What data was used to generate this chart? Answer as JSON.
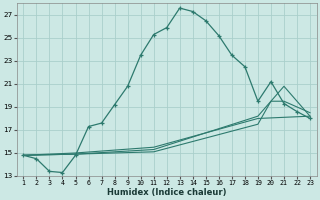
{
  "xlabel": "Humidex (Indice chaleur)",
  "bg_color": "#cce8e4",
  "grid_color": "#aacfcb",
  "line_color": "#2d7a6e",
  "xlim": [
    0.5,
    23.5
  ],
  "ylim": [
    13,
    28
  ],
  "xticks": [
    1,
    2,
    3,
    4,
    5,
    6,
    7,
    8,
    9,
    10,
    11,
    12,
    13,
    14,
    15,
    16,
    17,
    18,
    19,
    20,
    21,
    22,
    23
  ],
  "yticks": [
    13,
    15,
    17,
    19,
    21,
    23,
    25,
    27
  ],
  "line1_x": [
    1,
    2,
    3,
    4,
    5,
    6,
    7,
    8,
    9,
    10,
    11,
    12,
    13,
    14,
    15,
    16,
    17,
    18,
    19,
    20,
    21,
    22,
    23
  ],
  "line1_y": [
    14.8,
    14.5,
    13.4,
    13.3,
    14.8,
    17.3,
    17.6,
    19.2,
    20.8,
    23.5,
    25.3,
    25.9,
    27.6,
    27.3,
    26.5,
    25.2,
    23.5,
    22.5,
    19.5,
    21.2,
    19.3,
    18.6,
    18.0
  ],
  "line2_x": [
    1,
    5,
    11,
    19,
    20,
    21,
    23
  ],
  "line2_y": [
    14.8,
    14.9,
    15.1,
    17.5,
    19.5,
    20.8,
    18.2
  ],
  "line3_x": [
    1,
    5,
    11,
    19,
    20,
    21,
    23
  ],
  "line3_y": [
    14.8,
    14.9,
    15.3,
    18.2,
    19.5,
    19.5,
    18.5
  ],
  "line4_x": [
    1,
    5,
    11,
    19,
    23
  ],
  "line4_y": [
    14.8,
    15.0,
    15.5,
    18.0,
    18.2
  ]
}
